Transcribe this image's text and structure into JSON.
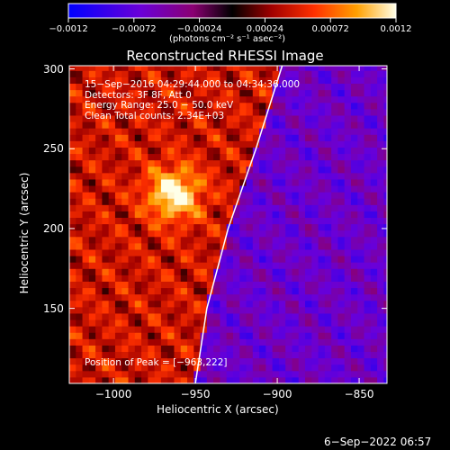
{
  "colorbar": {
    "ticks": [
      "-0.0012",
      "-0.00072",
      "-0.00024",
      "0.00024",
      "0.00072",
      "0.0012"
    ],
    "units": "(photons cm⁻² s⁻¹ asec⁻²)",
    "range": [
      -0.0012,
      0.0012
    ]
  },
  "chart_data": {
    "type": "heatmap",
    "title": "Reconstructed RHESSI Image",
    "xlabel": "Heliocentric X (arcsec)",
    "ylabel": "Heliocentric Y (arcsec)",
    "xlim": [
      -1027,
      -833
    ],
    "ylim": [
      103,
      302
    ],
    "x_ticks": [
      "−1000",
      "−950",
      "−900",
      "−850"
    ],
    "x_tick_values": [
      -1000,
      -950,
      -900,
      -850
    ],
    "y_ticks": [
      "300",
      "250",
      "200",
      "150"
    ],
    "y_tick_values": [
      300,
      250,
      200,
      150
    ],
    "peak": [
      -963,
      222
    ],
    "limb_line": [
      [
        -950,
        103
      ],
      [
        -943,
        150
      ],
      [
        -930,
        200
      ],
      [
        -913,
        250
      ],
      [
        -897,
        302
      ]
    ],
    "annotations": [
      "15−Sep−2016 04:29:44.000 to 04:34:36.000",
      "Detectors: 3F 8F, Att 0",
      "Energy Range: 25.0 − 50.0 keV",
      "Clean      Total counts: 2.34E+03"
    ],
    "peak_label": "Position of Peak = [−963,222]"
  },
  "footer": {
    "date": "6−Sep−2022 06:57"
  }
}
